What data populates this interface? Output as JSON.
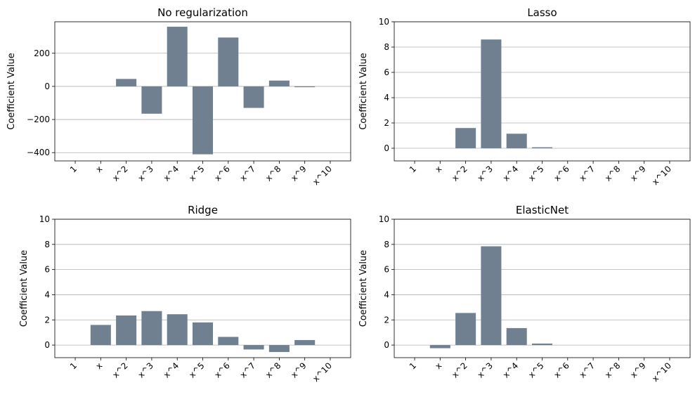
{
  "chart_data": [
    {
      "type": "bar",
      "title": "No regularization",
      "ylabel": "Coefficient Value",
      "xlabel": "",
      "categories": [
        "1",
        "x",
        "x^2",
        "x^3",
        "x^4",
        "x^5",
        "x^6",
        "x^7",
        "x^8",
        "x^9",
        "x^10"
      ],
      "values": [
        0,
        0,
        45,
        -165,
        360,
        -410,
        295,
        -130,
        35,
        -5,
        0
      ],
      "ylim": [
        -450,
        390
      ],
      "yticks": [
        "200",
        "0",
        "−200",
        "−400"
      ],
      "ytick_values": [
        200,
        0,
        -200,
        -400
      ],
      "grid": "y"
    },
    {
      "type": "bar",
      "title": "Lasso",
      "ylabel": "Coefficient Value",
      "xlabel": "",
      "categories": [
        "1",
        "x",
        "x^2",
        "x^3",
        "x^4",
        "x^5",
        "x^6",
        "x^7",
        "x^8",
        "x^9",
        "x^10"
      ],
      "values": [
        0,
        0,
        1.6,
        8.6,
        1.15,
        0.08,
        0,
        0,
        0,
        0,
        0
      ],
      "ylim": [
        -1,
        10
      ],
      "yticks": [
        "0",
        "2",
        "4",
        "6",
        "8",
        "10"
      ],
      "ytick_values": [
        0,
        2,
        4,
        6,
        8,
        10
      ],
      "grid": "y"
    },
    {
      "type": "bar",
      "title": "Ridge",
      "ylabel": "Coefficient Value",
      "xlabel": "",
      "categories": [
        "1",
        "x",
        "x^2",
        "x^3",
        "x^4",
        "x^5",
        "x^6",
        "x^7",
        "x^8",
        "x^9",
        "x^10"
      ],
      "values": [
        0,
        1.6,
        2.35,
        2.7,
        2.45,
        1.8,
        0.65,
        -0.35,
        -0.55,
        0.4,
        0
      ],
      "ylim": [
        -1,
        10
      ],
      "yticks": [
        "0",
        "2",
        "4",
        "6",
        "8",
        "10"
      ],
      "ytick_values": [
        0,
        2,
        4,
        6,
        8,
        10
      ],
      "grid": "y"
    },
    {
      "type": "bar",
      "title": "ElasticNet",
      "ylabel": "Coefficient Value",
      "xlabel": "",
      "categories": [
        "1",
        "x",
        "x^2",
        "x^3",
        "x^4",
        "x^5",
        "x^6",
        "x^7",
        "x^8",
        "x^9",
        "x^10"
      ],
      "values": [
        0,
        -0.25,
        2.55,
        7.85,
        1.35,
        0.12,
        0,
        0,
        0,
        0,
        0
      ],
      "ylim": [
        -1,
        10
      ],
      "yticks": [
        "0",
        "2",
        "4",
        "6",
        "8",
        "10"
      ],
      "ytick_values": [
        0,
        2,
        4,
        6,
        8,
        10
      ],
      "grid": "y"
    }
  ],
  "colors": {
    "bar": "#708090",
    "grid": "#b0b0b0",
    "axis": "#000000",
    "background": "#ffffff"
  }
}
